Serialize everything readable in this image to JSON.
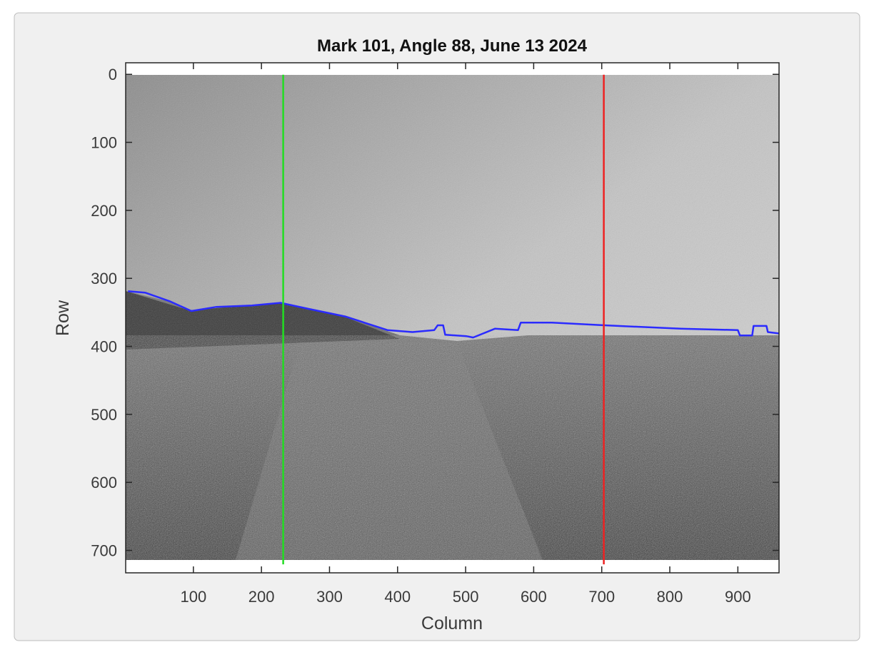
{
  "chart_data": {
    "type": "line",
    "title": "Mark 101, Angle 88, June 13 2024",
    "x_label": "Column",
    "y_label": "Row",
    "xlim": [
      0.5,
      960.5
    ],
    "ylim": [
      -17,
      733
    ],
    "y_reversed": true,
    "xticks": [
      100,
      200,
      300,
      400,
      500,
      600,
      700,
      800,
      900
    ],
    "yticks": [
      0,
      100,
      200,
      300,
      400,
      500,
      600,
      700
    ],
    "series": [
      {
        "color": "#2b2bff",
        "x": [
          4,
          29,
          66,
          97,
          134,
          186,
          228,
          270,
          323,
          385,
          422,
          454,
          459,
          467,
          470,
          501,
          511,
          543,
          577,
          581,
          627,
          704,
          816,
          900,
          903,
          921,
          923,
          942,
          944,
          960
        ],
        "values": [
          319,
          321,
          334,
          348,
          342,
          340,
          336,
          345,
          356,
          376,
          379,
          376,
          369,
          369,
          383,
          385,
          387,
          374,
          376,
          365,
          365,
          369,
          374,
          376,
          384,
          384,
          370,
          370,
          379,
          381
        ]
      },
      {
        "color": "#22dd22",
        "x": [
          232,
          232
        ],
        "values": [
          0.5,
          720.5
        ]
      },
      {
        "color": "#ee2222",
        "x": [
          703,
          703
        ],
        "values": [
          0.5,
          720.5
        ]
      }
    ]
  }
}
